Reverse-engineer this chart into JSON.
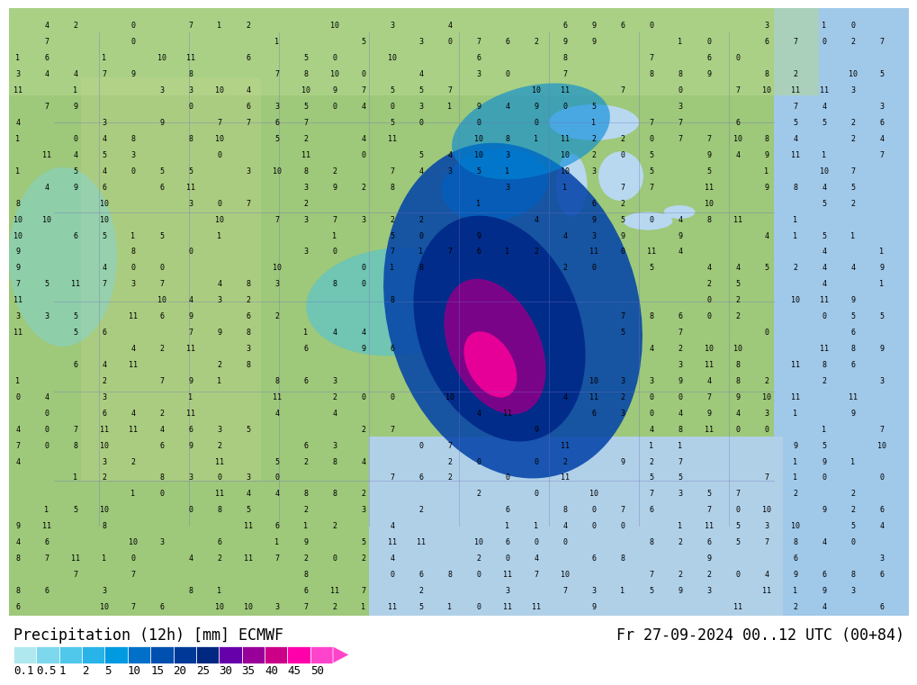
{
  "title_left": "Precipitation (12h) [mm] ECMWF",
  "title_right": "Fr 27-09-2024 00..12 UTC (00+84)",
  "colorbar_levels": [
    0.1,
    0.5,
    1,
    2,
    5,
    10,
    15,
    20,
    25,
    30,
    35,
    40,
    45,
    50
  ],
  "colorbar_colors": [
    "#b0e8f0",
    "#7dd8ee",
    "#50c8ec",
    "#28b4e8",
    "#009ae0",
    "#0070c8",
    "#0050b0",
    "#003898",
    "#002880",
    "#6600aa",
    "#990099",
    "#cc0088",
    "#ff00aa",
    "#ff44cc"
  ],
  "background_color": "#ffffff",
  "map_bg_color": "#c8e6b0",
  "label_fontsize": 11,
  "title_fontsize": 12
}
